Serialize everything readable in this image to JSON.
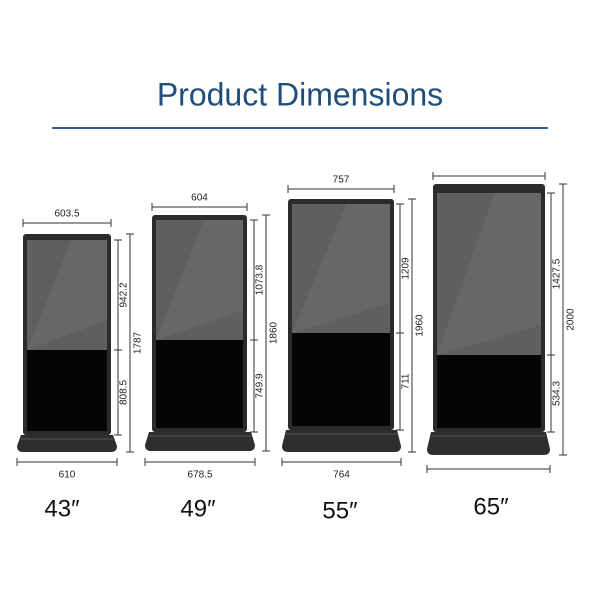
{
  "title": "Product Dimensions",
  "products": [
    {
      "size": "43″",
      "top_width": "603.5",
      "bottom_width": "610",
      "upper_height": "942.2",
      "lower_height": "808.5",
      "total_height": "1787"
    },
    {
      "size": "49″",
      "top_width": "604",
      "bottom_width": "678.5",
      "upper_height": "1073.8",
      "lower_height": "749.9",
      "total_height": "1860"
    },
    {
      "size": "55″",
      "top_width": "757",
      "bottom_width": "764",
      "upper_height": "1209",
      "lower_height": "711",
      "total_height": "1960"
    },
    {
      "size": "65″",
      "upper_height": "1427.5",
      "lower_height": "534.3",
      "total_height": "2000"
    }
  ]
}
